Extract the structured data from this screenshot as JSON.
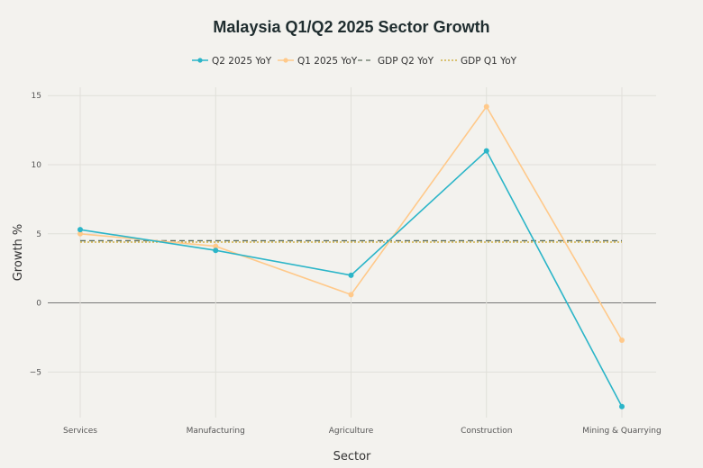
{
  "chart_data": {
    "type": "line",
    "title": "Malaysia Q1/Q2 2025 Sector Growth",
    "xlabel": "Sector",
    "ylabel": "Growth %",
    "categories": [
      "Services",
      "Manufacturing",
      "Agriculture",
      "Construction",
      "Mining & Quarrying"
    ],
    "series": [
      {
        "name": "Q2 2025 YoY",
        "color": "#2bb5c8",
        "values": [
          5.3,
          3.8,
          2.0,
          11.0,
          -7.5
        ]
      },
      {
        "name": "Q1 2025 YoY",
        "color": "#ffc98a",
        "values": [
          5.0,
          4.1,
          0.6,
          14.2,
          -2.7
        ]
      }
    ],
    "reference_lines": [
      {
        "name": "GDP Q2 YoY",
        "value": 4.5,
        "color": "#5e6f5f",
        "style": "dashed"
      },
      {
        "name": "GDP Q1 YoY",
        "value": 4.4,
        "color": "#c9a62a",
        "style": "dotted"
      }
    ],
    "ylim": [
      -8.3,
      15.6
    ],
    "yticks": [
      15,
      10,
      5,
      0,
      -5
    ],
    "ytick_labels": [
      "15",
      "10",
      "5",
      "0",
      "−5"
    ],
    "grid": true,
    "legend_position": "top-center"
  }
}
